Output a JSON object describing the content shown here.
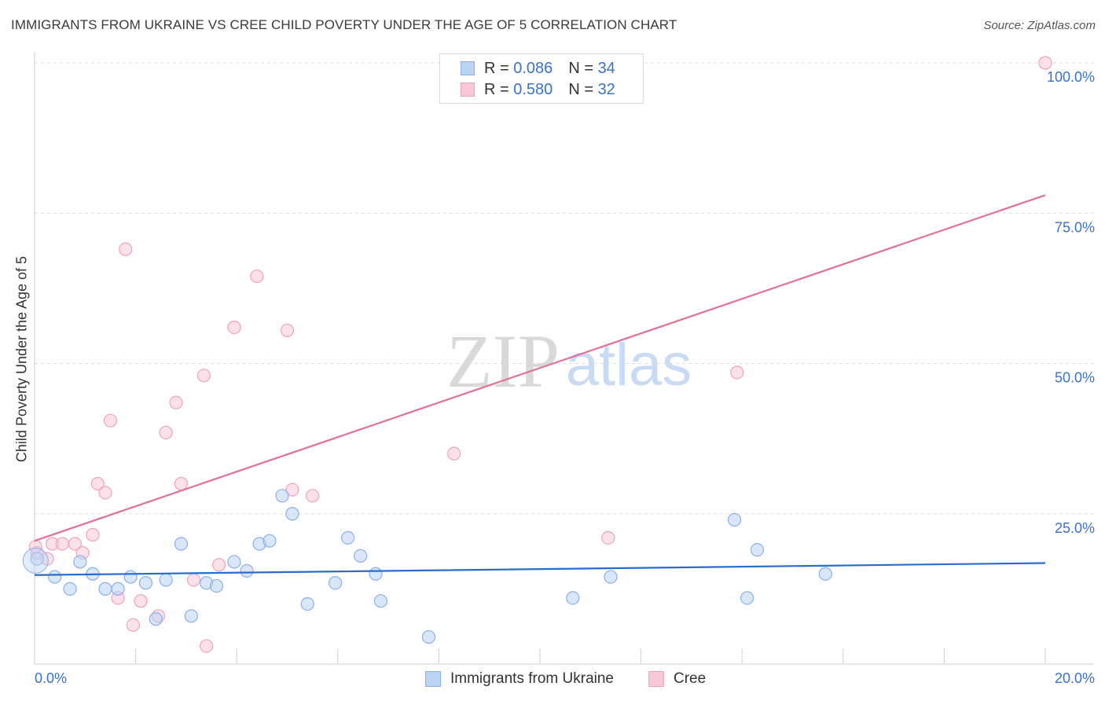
{
  "title": "IMMIGRANTS FROM UKRAINE VS CREE CHILD POVERTY UNDER THE AGE OF 5 CORRELATION CHART",
  "source": "Source: ZipAtlas.com",
  "watermark": {
    "zip": "ZIP",
    "atlas": "atlas"
  },
  "legend": {
    "rows": [
      {
        "r_label": "R = ",
        "r_value": "0.086",
        "n_label": "N = ",
        "n_value": "34"
      },
      {
        "r_label": "R = ",
        "r_value": "0.580",
        "n_label": "N = ",
        "n_value": "32"
      }
    ]
  },
  "bottom_legend": {
    "series1": "Immigrants from Ukraine",
    "series2": "Cree"
  },
  "colors": {
    "blue_fill": "#bcd4f4",
    "blue_stroke": "#8ab0e6",
    "blue_line": "#2a6ccc",
    "pink_fill": "#f9c8d8",
    "pink_stroke": "#eea3bd",
    "pink_line": "#e0709a",
    "tick_label": "#3b73c4"
  },
  "chart_data": {
    "type": "scatter",
    "title": "IMMIGRANTS FROM UKRAINE VS CREE CHILD POVERTY UNDER THE AGE OF 5 CORRELATION CHART",
    "xlabel": "",
    "ylabel": "Child Poverty Under the Age of 5",
    "xlim": [
      0,
      20
    ],
    "ylim": [
      0,
      100
    ],
    "x_tick_labels": [
      {
        "value": 0,
        "label": "0.0%"
      },
      {
        "value": 20,
        "label": "20.0%"
      }
    ],
    "y_tick_labels": [
      {
        "value": 25,
        "label": "25.0%"
      },
      {
        "value": 50,
        "label": "50.0%"
      },
      {
        "value": 75,
        "label": "75.0%"
      },
      {
        "value": 100,
        "label": "100.0%"
      }
    ],
    "series": [
      {
        "name": "Immigrants from Ukraine",
        "points": [
          [
            0.05,
            17.5
          ],
          [
            0.4,
            14.5
          ],
          [
            0.7,
            12.5
          ],
          [
            0.9,
            17.0
          ],
          [
            1.15,
            15.0
          ],
          [
            1.4,
            12.5
          ],
          [
            1.65,
            12.5
          ],
          [
            1.9,
            14.5
          ],
          [
            2.2,
            13.5
          ],
          [
            2.4,
            7.5
          ],
          [
            2.6,
            14.0
          ],
          [
            2.9,
            20.0
          ],
          [
            3.1,
            8.0
          ],
          [
            3.4,
            13.5
          ],
          [
            3.6,
            13.0
          ],
          [
            3.95,
            17.0
          ],
          [
            4.2,
            15.5
          ],
          [
            4.45,
            20.0
          ],
          [
            4.65,
            20.5
          ],
          [
            4.9,
            28.0
          ],
          [
            5.1,
            25.0
          ],
          [
            5.4,
            10.0
          ],
          [
            5.95,
            13.5
          ],
          [
            6.2,
            21.0
          ],
          [
            6.45,
            18.0
          ],
          [
            6.75,
            15.0
          ],
          [
            6.85,
            10.5
          ],
          [
            7.8,
            4.5
          ],
          [
            10.65,
            11.0
          ],
          [
            11.4,
            14.5
          ],
          [
            13.85,
            24.0
          ],
          [
            14.1,
            11.0
          ],
          [
            14.3,
            19.0
          ],
          [
            15.65,
            15.0
          ]
        ],
        "trend": {
          "x": [
            0,
            20
          ],
          "y": [
            14.8,
            16.8
          ]
        }
      },
      {
        "name": "Cree",
        "points": [
          [
            0.05,
            18.5
          ],
          [
            0.25,
            17.5
          ],
          [
            0.35,
            20.0
          ],
          [
            0.55,
            20.0
          ],
          [
            0.8,
            20.0
          ],
          [
            0.95,
            18.5
          ],
          [
            1.15,
            21.5
          ],
          [
            1.25,
            30.0
          ],
          [
            1.4,
            28.5
          ],
          [
            1.5,
            40.5
          ],
          [
            1.65,
            11.0
          ],
          [
            1.8,
            69.0
          ],
          [
            1.95,
            6.5
          ],
          [
            2.1,
            10.5
          ],
          [
            2.45,
            8.0
          ],
          [
            2.6,
            38.5
          ],
          [
            2.8,
            43.5
          ],
          [
            2.9,
            30.0
          ],
          [
            3.15,
            14.0
          ],
          [
            3.35,
            48.0
          ],
          [
            3.4,
            3.0
          ],
          [
            3.65,
            16.5
          ],
          [
            3.95,
            56.0
          ],
          [
            4.4,
            64.5
          ],
          [
            5.0,
            55.5
          ],
          [
            5.1,
            29.0
          ],
          [
            5.5,
            28.0
          ],
          [
            8.3,
            35.0
          ],
          [
            11.35,
            21.0
          ],
          [
            13.9,
            48.5
          ],
          [
            20.0,
            100.0
          ],
          [
            0.02,
            19.5
          ]
        ],
        "trend": {
          "x": [
            0,
            20
          ],
          "y": [
            20.5,
            78.0
          ]
        }
      }
    ]
  }
}
